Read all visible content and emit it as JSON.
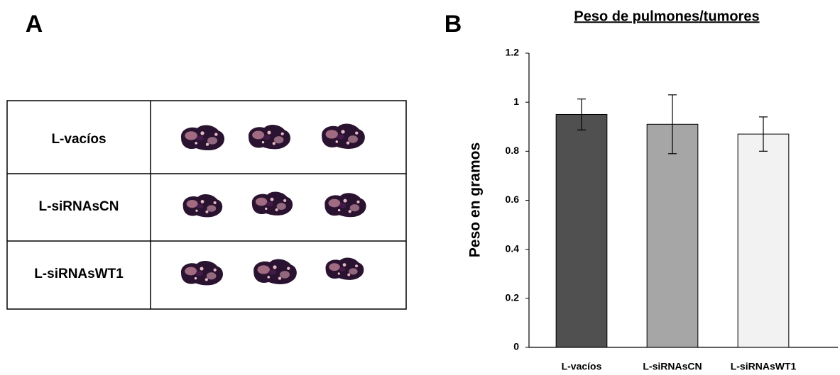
{
  "panel_a": {
    "label": "A",
    "rows": [
      "L-vacíos",
      "L-siRNAsCN",
      "L-siRNAsWT1"
    ]
  },
  "panel_b_label": "B",
  "chart_data": {
    "type": "bar",
    "title": "Peso de pulmones/tumores",
    "y_label": "Peso en gramos",
    "categories": [
      "L-vacíos",
      "L-siRNAsCN",
      "L-siRNAsWT1"
    ],
    "values": [
      0.95,
      0.91,
      0.87
    ],
    "errors": [
      0.063,
      0.12,
      0.07
    ],
    "colors": [
      "#505050",
      "#a6a6a6",
      "#f2f2f2"
    ],
    "ylim": [
      0,
      1.2
    ],
    "yticks": [
      0,
      0.2,
      0.4,
      0.6,
      0.8,
      1,
      1.2
    ],
    "grid": false
  }
}
